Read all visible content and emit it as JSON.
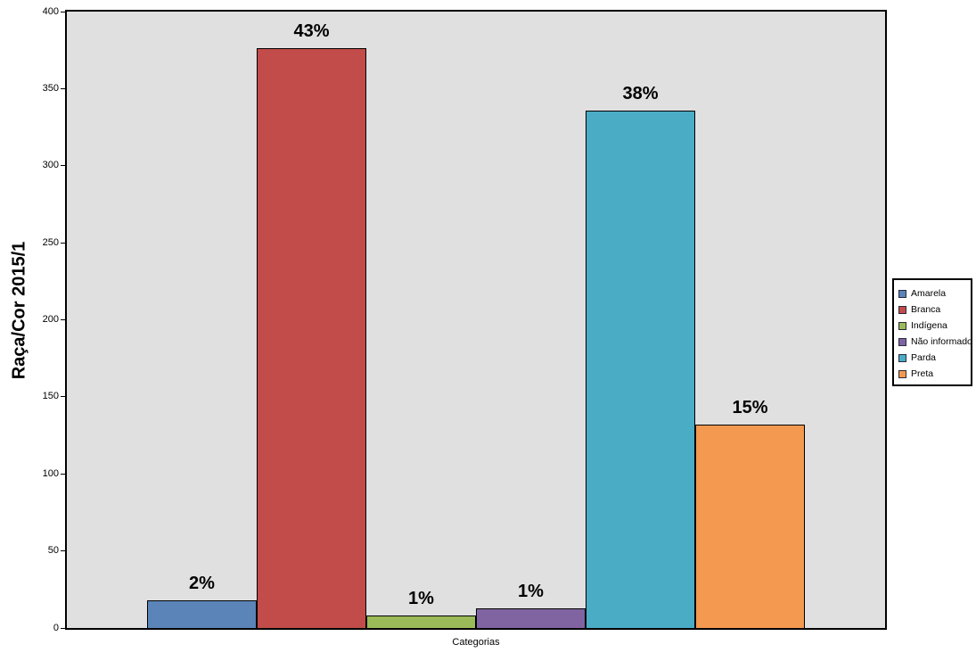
{
  "chart_data": {
    "type": "bar",
    "categories": [
      "Amarela",
      "Branca",
      "Indígena",
      "Não informado",
      "Parda",
      "Preta"
    ],
    "values": [
      18,
      376,
      8,
      13,
      336,
      132
    ],
    "bar_labels": [
      "2%",
      "43%",
      "1%",
      "1%",
      "38%",
      "15%"
    ],
    "colors": [
      "#5B84B8",
      "#C24C4A",
      "#9BBB59",
      "#8064A2",
      "#4BACC6",
      "#F49950"
    ],
    "title": "",
    "xlabel": "Categorias",
    "ylabel": "Raça/Cor 2015/1",
    "ylim": [
      0,
      400
    ],
    "yticks": [
      0,
      50,
      100,
      150,
      200,
      250,
      300,
      350,
      400
    ],
    "grid": false,
    "legend_position": "right",
    "legend_entries": [
      {
        "label": "Amarela",
        "color": "#5B84B8"
      },
      {
        "label": "Branca",
        "color": "#C24C4A"
      },
      {
        "label": "Indígena",
        "color": "#9BBB59"
      },
      {
        "label": "Não informado",
        "color": "#8064A2"
      },
      {
        "label": "Parda",
        "color": "#4BACC6"
      },
      {
        "label": "Preta",
        "color": "#F49950"
      }
    ],
    "plot_background": "#E0E0E0",
    "page_background": "#FFFFFF"
  }
}
